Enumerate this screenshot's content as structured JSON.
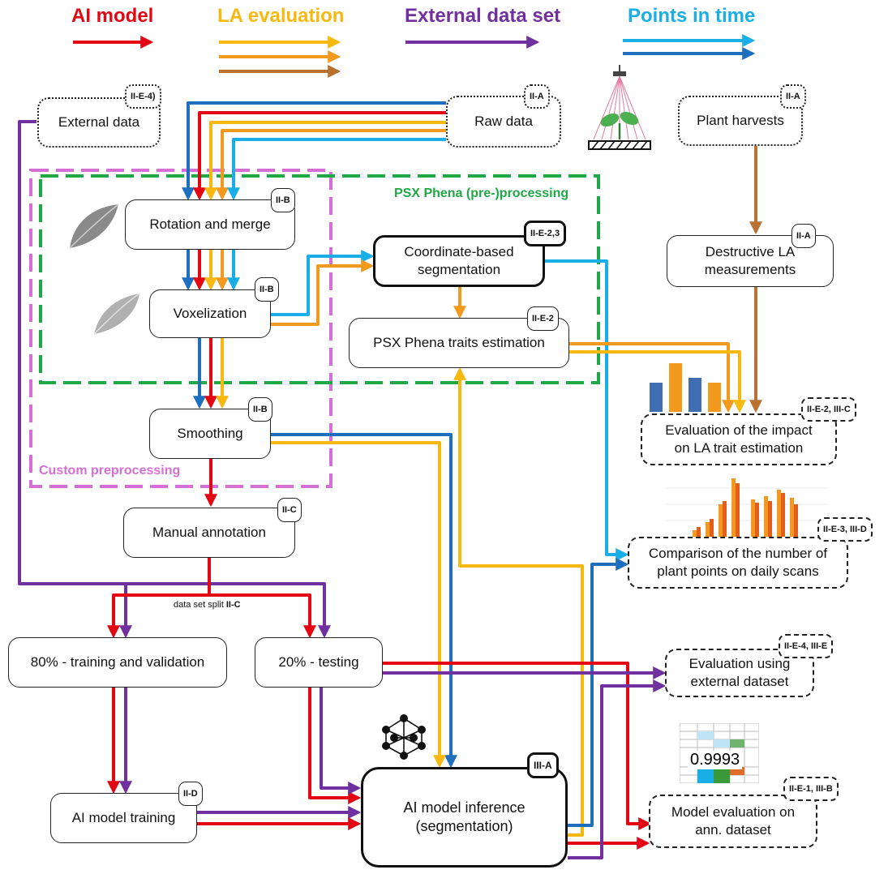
{
  "colors": {
    "ai_model": "#e30613",
    "la_yellow": "#f7b90f",
    "la_orange": "#f39a1e",
    "la_brown": "#b87333",
    "external": "#7030a0",
    "time_light": "#1aaee6",
    "time_dark": "#1f6fbf",
    "psx_region": "#1fa845",
    "custom_region": "#d56fd6"
  },
  "legend": {
    "ai_model": "AI model",
    "la_evaluation": "LA evaluation",
    "external_data_set": "External data set",
    "points_in_time": "Points in time"
  },
  "regions": {
    "psx": "PSX Phena (pre-)processing",
    "custom": "Custom preprocessing"
  },
  "nodes": {
    "external_data": {
      "label": "External data",
      "tag": "II-E-4)"
    },
    "raw_data": {
      "label": "Raw data",
      "tag": "II-A"
    },
    "plant_harvests": {
      "label": "Plant harvests",
      "tag": "II-A"
    },
    "rotation_merge": {
      "label": "Rotation and merge",
      "tag": "II-B"
    },
    "voxelization": {
      "label": "Voxelization",
      "tag": "II-B"
    },
    "coord_seg": {
      "label": "Coordinate-based segmentation",
      "tag": "II-E-2,3"
    },
    "psx_traits": {
      "label": "PSX Phena traits estimation",
      "tag": "II-E-2"
    },
    "destructive_la": {
      "label": "Destructive LA measurements",
      "tag": "II-A"
    },
    "smoothing": {
      "label": "Smoothing",
      "tag": "II-B"
    },
    "eval_impact": {
      "label": "Evaluation of the impact on LA trait estimation",
      "tag": "II-E-2, III-C"
    },
    "manual_annotation": {
      "label": "Manual annotation",
      "tag": "II-C"
    },
    "comparison": {
      "label": "Comparison of the number of plant points on daily scans",
      "tag": "II-E-3, III-D"
    },
    "training_val": {
      "label": "80% - training and validation"
    },
    "testing": {
      "label": "20% - testing"
    },
    "eval_external": {
      "label": "Evaluation using external dataset",
      "tag": "II-E-4, III-E"
    },
    "ai_training": {
      "label": "AI model training",
      "tag": "II-D"
    },
    "ai_inference": {
      "label": "AI model inference (segmentation)",
      "tag": "III-A"
    },
    "model_eval": {
      "label": "Model evaluation on ann. dataset",
      "tag": "II-E-1, III-B"
    }
  },
  "split_note": {
    "text": "data set split",
    "ref": "II-C"
  },
  "metric_value": "0.9993"
}
